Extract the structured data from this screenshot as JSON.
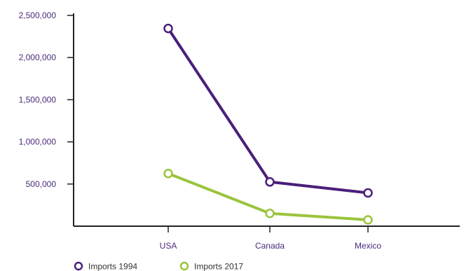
{
  "chart_data": {
    "type": "line",
    "categories": [
      "USA",
      "Canada",
      "Mexico"
    ],
    "series": [
      {
        "name": "Imports 1994",
        "color": "#4b1f7a",
        "values": [
          2345000,
          525000,
          395000
        ]
      },
      {
        "name": "Imports 2017",
        "color": "#9ac43c",
        "values": [
          625000,
          152000,
          75000
        ]
      }
    ],
    "y_ticks": [
      500000,
      1000000,
      1500000,
      2000000,
      2500000
    ],
    "y_tick_labels": [
      "500,000",
      "1,000,000",
      "1,500,000",
      "2,000,000",
      "2,500,000"
    ],
    "ylim": [
      0,
      2500000
    ],
    "axis_color": "#222222",
    "tick_label_color": "#4b2a7b",
    "grid": false,
    "legend_position": "bottom-left"
  }
}
